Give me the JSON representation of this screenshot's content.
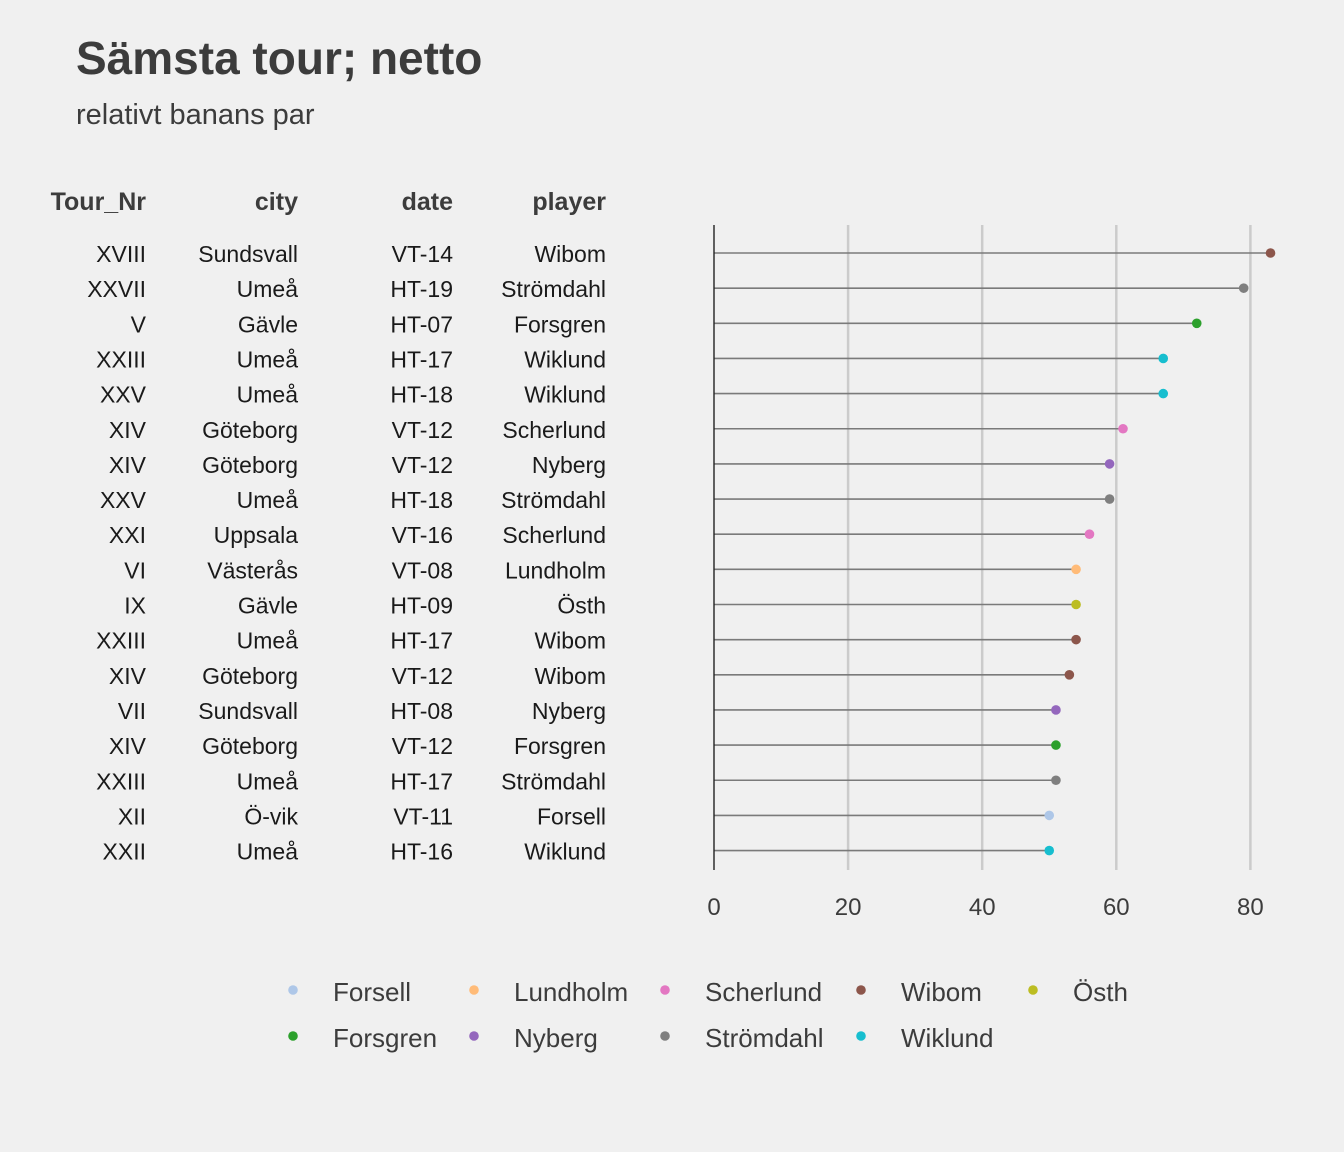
{
  "title": "Sämsta tour; netto",
  "subtitle": "relativt banans par",
  "columns": [
    "Tour_Nr",
    "city",
    "date",
    "player"
  ],
  "rows": [
    {
      "tour": "XVIII",
      "city": "Sundsvall",
      "date": "VT-14",
      "player": "Wibom"
    },
    {
      "tour": "XXVII",
      "city": "Umeå",
      "date": "HT-19",
      "player": "Strömdahl"
    },
    {
      "tour": "V",
      "city": "Gävle",
      "date": "HT-07",
      "player": "Forsgren"
    },
    {
      "tour": "XXIII",
      "city": "Umeå",
      "date": "HT-17",
      "player": "Wiklund"
    },
    {
      "tour": "XXV",
      "city": "Umeå",
      "date": "HT-18",
      "player": "Wiklund"
    },
    {
      "tour": "XIV",
      "city": "Göteborg",
      "date": "VT-12",
      "player": "Scherlund"
    },
    {
      "tour": "XIV",
      "city": "Göteborg",
      "date": "VT-12",
      "player": "Nyberg"
    },
    {
      "tour": "XXV",
      "city": "Umeå",
      "date": "HT-18",
      "player": "Strömdahl"
    },
    {
      "tour": "XXI",
      "city": "Uppsala",
      "date": "VT-16",
      "player": "Scherlund"
    },
    {
      "tour": "VI",
      "city": "Västerås",
      "date": "VT-08",
      "player": "Lundholm"
    },
    {
      "tour": "IX",
      "city": "Gävle",
      "date": "HT-09",
      "player": "Östh"
    },
    {
      "tour": "XXIII",
      "city": "Umeå",
      "date": "HT-17",
      "player": "Wibom"
    },
    {
      "tour": "XIV",
      "city": "Göteborg",
      "date": "VT-12",
      "player": "Wibom"
    },
    {
      "tour": "VII",
      "city": "Sundsvall",
      "date": "HT-08",
      "player": "Nyberg"
    },
    {
      "tour": "XIV",
      "city": "Göteborg",
      "date": "VT-12",
      "player": "Forsgren"
    },
    {
      "tour": "XXIII",
      "city": "Umeå",
      "date": "HT-17",
      "player": "Strömdahl"
    },
    {
      "tour": "XII",
      "city": "Ö-vik",
      "date": "VT-11",
      "player": "Forsell"
    },
    {
      "tour": "XXII",
      "city": "Umeå",
      "date": "HT-16",
      "player": "Wiklund"
    }
  ],
  "chart_data": {
    "type": "lollipop",
    "orientation": "horizontal",
    "values": [
      83,
      79,
      72,
      67,
      67,
      61,
      59,
      59,
      56,
      54,
      54,
      54,
      53,
      51,
      51,
      51,
      50,
      50
    ],
    "xlim": [
      0,
      84
    ],
    "x_ticks": [
      0,
      20,
      40,
      60,
      80
    ],
    "grid": "vertical",
    "legend_position": "bottom",
    "legend": [
      {
        "name": "Forsell",
        "color": "#aec7e8"
      },
      {
        "name": "Forsgren",
        "color": "#2ca02c"
      },
      {
        "name": "Lundholm",
        "color": "#ffbb78"
      },
      {
        "name": "Nyberg",
        "color": "#9467bd"
      },
      {
        "name": "Scherlund",
        "color": "#e377c2"
      },
      {
        "name": "Strömdahl",
        "color": "#7f7f7f"
      },
      {
        "name": "Wibom",
        "color": "#8c564b"
      },
      {
        "name": "Wiklund",
        "color": "#17becf"
      },
      {
        "name": "Östh",
        "color": "#bcbd22"
      }
    ]
  }
}
